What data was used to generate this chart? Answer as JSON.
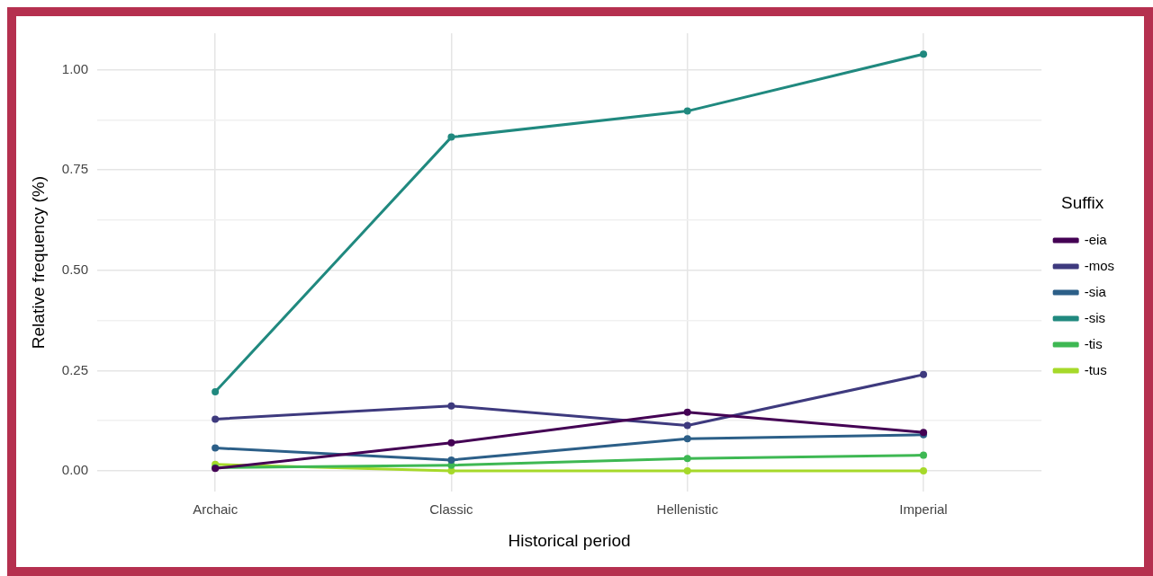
{
  "chart_data": {
    "type": "line",
    "xlabel": "Historical period",
    "ylabel": "Relative frequency (%)",
    "legend_title": "Suffix",
    "legend": "right",
    "grid": true,
    "marker": "circle",
    "line_style": "solid",
    "categories": [
      "Archaic",
      "Classic",
      "Hellenistic",
      "Imperial"
    ],
    "ylim": [
      -0.052,
      1.091
    ],
    "yticks": [
      {
        "value": 0,
        "label": "0.00"
      },
      {
        "value": 0.125,
        "label": null
      },
      {
        "value": 0.25,
        "label": "0.25"
      },
      {
        "value": 0.375,
        "label": null
      },
      {
        "value": 0.5,
        "label": "0.50"
      },
      {
        "value": 0.625,
        "label": null
      },
      {
        "value": 0.75,
        "label": "0.75"
      },
      {
        "value": 0.875,
        "label": null
      },
      {
        "value": 1,
        "label": "1.00"
      }
    ],
    "series": [
      {
        "name": "-eia",
        "color": "#440154",
        "values": [
          0.006,
          0.07,
          0.146,
          0.096
        ]
      },
      {
        "name": "-mos",
        "color": "#3e3a7e",
        "values": [
          0.129,
          0.162,
          0.113,
          0.24
        ]
      },
      {
        "name": "-sia",
        "color": "#2c5f88",
        "values": [
          0.057,
          0.027,
          0.08,
          0.09
        ]
      },
      {
        "name": "-sis",
        "color": "#20897f",
        "values": [
          0.197,
          0.832,
          0.897,
          1.039
        ]
      },
      {
        "name": "-tis",
        "color": "#3eb853",
        "values": [
          0.008,
          0.014,
          0.031,
          0.039
        ]
      },
      {
        "name": "-tus",
        "color": "#a6d92a",
        "values": [
          0.016,
          0,
          0,
          0
        ]
      }
    ]
  }
}
